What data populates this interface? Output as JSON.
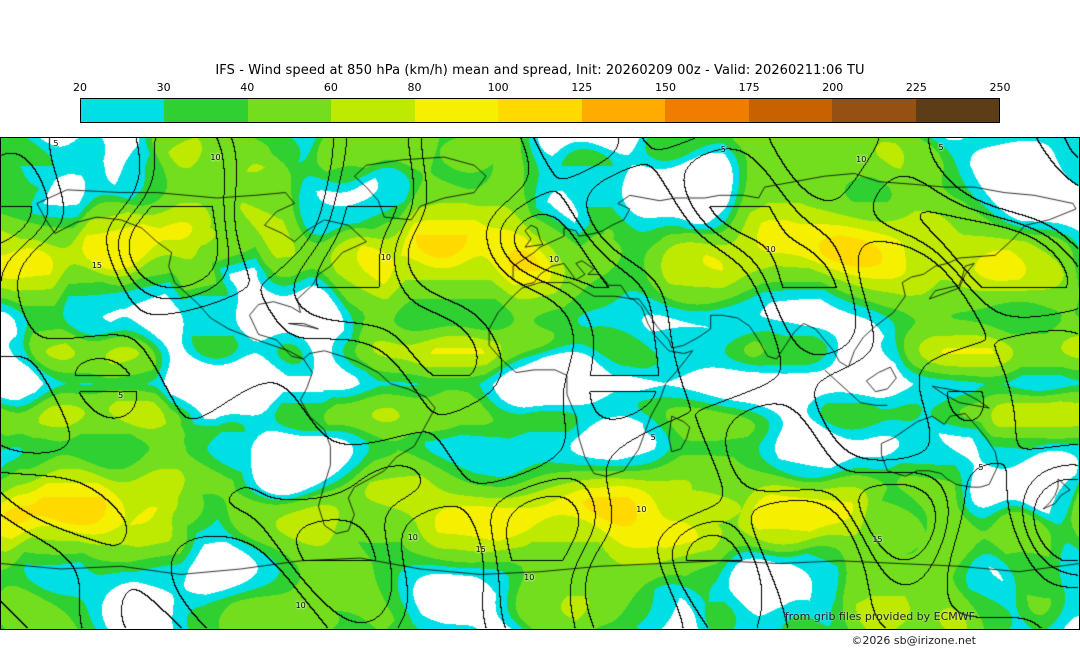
{
  "title": "IFS - Wind speed at 850 hPa (km/h) mean and spread, Init: 20260209 00z - Valid: 20260211:06 TU",
  "colorbar": {
    "tick_labels": [
      "20",
      "30",
      "40",
      "60",
      "80",
      "100",
      "125",
      "150",
      "175",
      "200",
      "225",
      "250"
    ],
    "segment_colors": [
      "#00dfe4",
      "#2fd032",
      "#73de1e",
      "#bdea00",
      "#f4f000",
      "#ffd900",
      "#ffab00",
      "#f07d00",
      "#c76200",
      "#945112",
      "#5c3d18"
    ]
  },
  "map": {
    "fill_min_value": 20,
    "spread_contour_levels": [
      5,
      10,
      15
    ],
    "background_below_min": "#ffffff",
    "coastline_color": "#000000",
    "contour_line_color": "#000000"
  },
  "credits": {
    "provider": "from grib files provided by ECMWF",
    "copyright": "©2026 sb@irizone.net"
  },
  "chart_data": {
    "type": "heatmap",
    "title": "IFS - Wind speed at 850 hPa (km/h) mean and spread, Init: 20260209 00z - Valid: 20260211:06 TU",
    "model": "IFS",
    "variable": "Wind speed at 850 hPa",
    "units": "km/h",
    "statistic": "mean and spread",
    "init": "20260209 00z",
    "valid": "20260211:06 TU",
    "projection": "global equirectangular",
    "legend_position": "top",
    "colorbar_ticks": [
      20,
      30,
      40,
      60,
      80,
      100,
      125,
      150,
      175,
      200,
      225,
      250
    ],
    "colorbar_colors": [
      "#00dfe4",
      "#2fd032",
      "#73de1e",
      "#bdea00",
      "#f4f000",
      "#ffd900",
      "#ffab00",
      "#f07d00",
      "#c76200",
      "#945112",
      "#5c3d18"
    ],
    "shaded_field": "ensemble mean wind speed (filled colors, white below 20 km/h)",
    "contour_field": "ensemble spread (black contour lines)",
    "spread_contour_levels": [
      5,
      10,
      15
    ],
    "annotations": [
      {
        "text": "5",
        "fx": 0.051,
        "fy": 0.013
      },
      {
        "text": "10",
        "fx": 0.199,
        "fy": 0.041
      },
      {
        "text": "5",
        "fx": 0.67,
        "fy": 0.024
      },
      {
        "text": "5",
        "fx": 0.872,
        "fy": 0.02
      },
      {
        "text": "10",
        "fx": 0.798,
        "fy": 0.045
      },
      {
        "text": "15",
        "fx": 0.089,
        "fy": 0.261
      },
      {
        "text": "10",
        "fx": 0.357,
        "fy": 0.244
      },
      {
        "text": "10",
        "fx": 0.513,
        "fy": 0.249
      },
      {
        "text": "10",
        "fx": 0.714,
        "fy": 0.228
      },
      {
        "text": "5",
        "fx": 0.111,
        "fy": 0.526
      },
      {
        "text": "5",
        "fx": 0.605,
        "fy": 0.611
      },
      {
        "text": "10",
        "fx": 0.382,
        "fy": 0.815
      },
      {
        "text": "15",
        "fx": 0.445,
        "fy": 0.839
      },
      {
        "text": "10",
        "fx": 0.594,
        "fy": 0.758
      },
      {
        "text": "10",
        "fx": 0.49,
        "fy": 0.897
      },
      {
        "text": "15",
        "fx": 0.813,
        "fy": 0.819
      },
      {
        "text": "10",
        "fx": 0.278,
        "fy": 0.953
      },
      {
        "text": "5",
        "fx": 0.909,
        "fy": 0.672
      }
    ]
  }
}
